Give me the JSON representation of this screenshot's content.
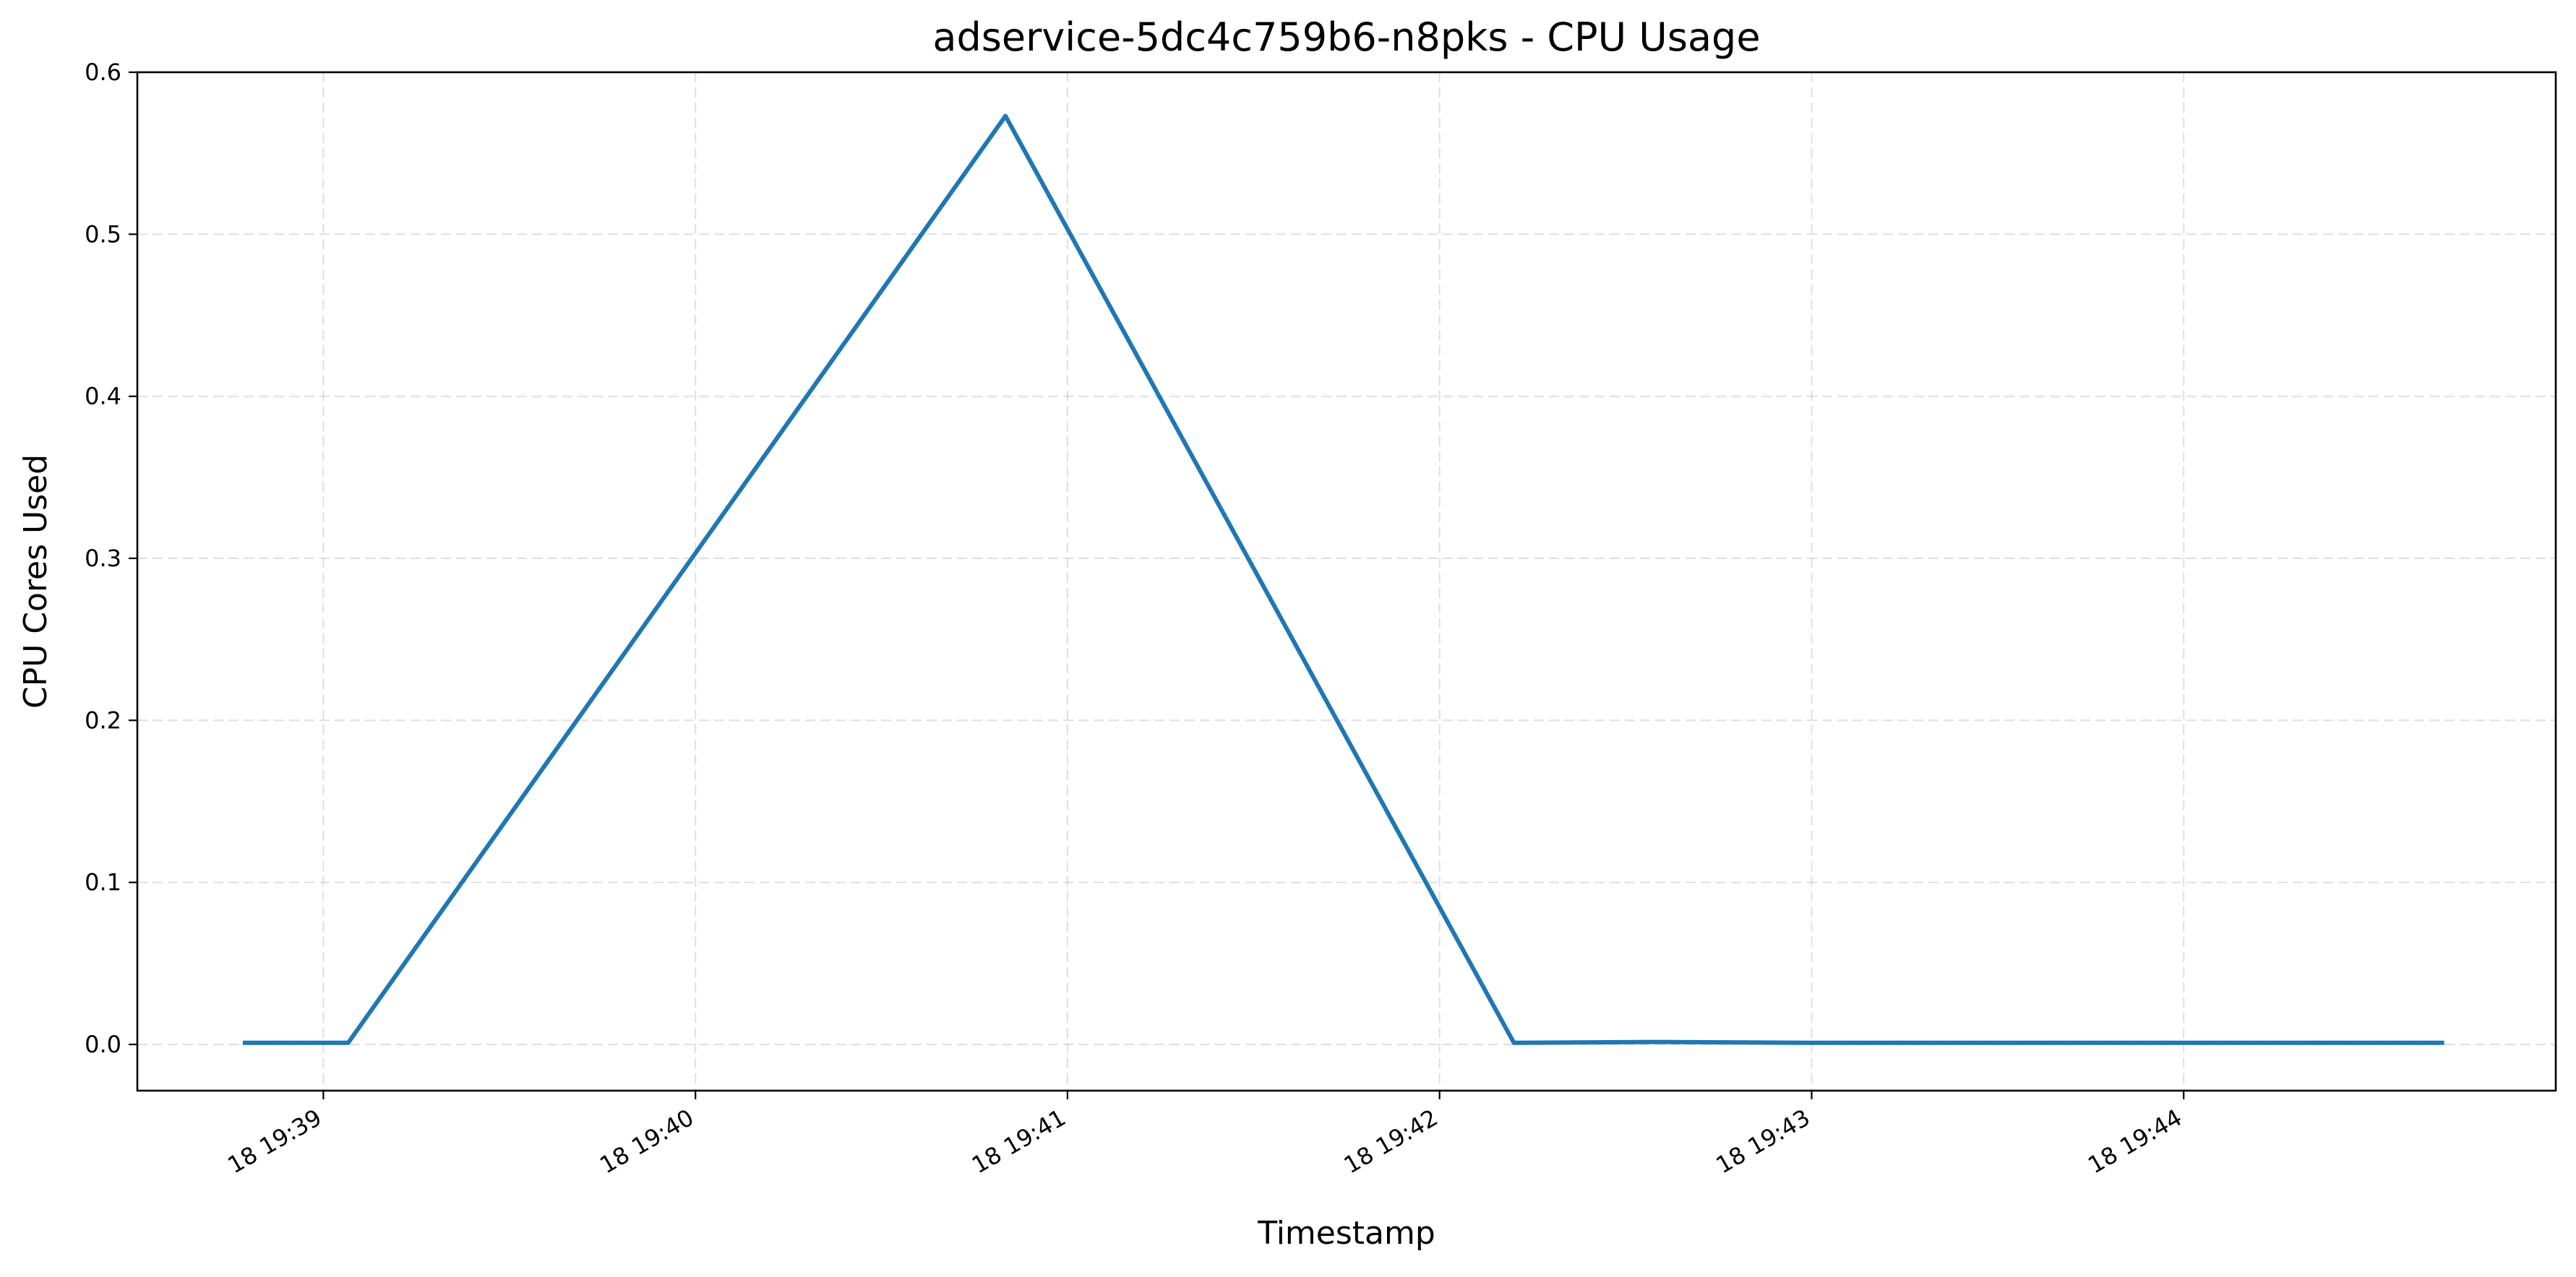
{
  "chart_data": {
    "type": "line",
    "title": "adservice-5dc4c759b6-n8pks - CPU Usage",
    "xlabel": "Timestamp",
    "ylabel": "CPU Cores Used",
    "ylim": [
      0,
      0.6
    ],
    "xlim": [
      "18 19:38:30",
      "18 19:45:00"
    ],
    "x_tick_labels": [
      "18 19:39",
      "18 19:40",
      "18 19:41",
      "18 19:42",
      "18 19:43",
      "18 19:44"
    ],
    "x_ticks": [
      "18 19:39:00",
      "18 19:40:00",
      "18 19:41:00",
      "18 19:42:00",
      "18 19:43:00",
      "18 19:44:00"
    ],
    "y_ticks": [
      0.0,
      0.1,
      0.2,
      0.3,
      0.4,
      0.5,
      0.6
    ],
    "y_tick_labels": [
      "0.0",
      "0.1",
      "0.2",
      "0.3",
      "0.4",
      "0.5",
      "0.6"
    ],
    "grid": true,
    "line_color": "#1f77b4",
    "series": [
      {
        "x": [
          "18 19:38:47",
          "18 19:39:04",
          "18 19:40:50",
          "18 19:42:12",
          "18 19:42:35",
          "18 19:43:00",
          "18 19:44:42"
        ],
        "values": [
          0.001,
          0.001,
          0.573,
          0.001,
          0.0015,
          0.001,
          0.001
        ]
      }
    ]
  }
}
